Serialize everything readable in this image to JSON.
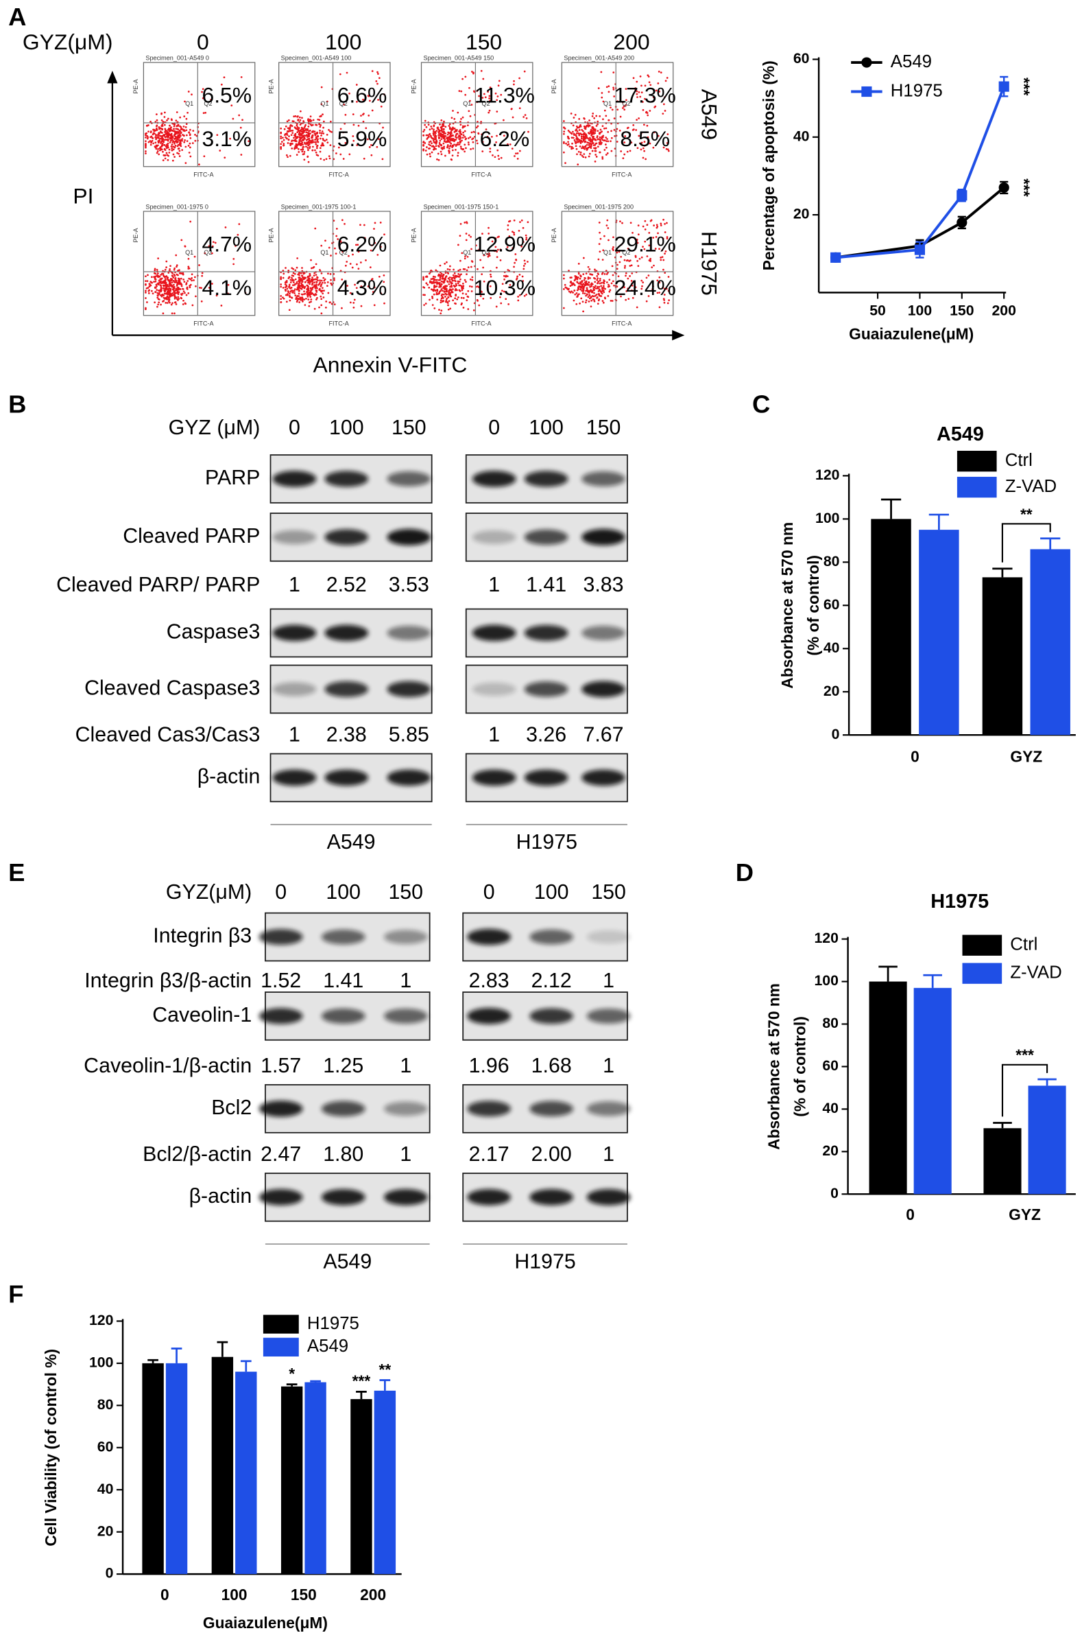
{
  "panel_labels": [
    "A",
    "B",
    "C",
    "D",
    "E",
    "F"
  ],
  "flow": {
    "header": "GYZ(μM)",
    "doses": [
      "0",
      "100",
      "150",
      "200"
    ],
    "rows": [
      {
        "name": "A549",
        "specimens": [
          "Specimen_001-A549 0",
          "Specimen_001-A549 100",
          "Specimen_001-A549 150",
          "Specimen_001-A549 200"
        ],
        "upper": [
          "6.5%",
          "6.6%",
          "11.3%",
          "17.3%"
        ],
        "lower": [
          "3.1%",
          "5.9%",
          "6.2%",
          "8.5%"
        ]
      },
      {
        "name": "H1975",
        "specimens": [
          "Specimen_001-1975 0",
          "Specimen_001-1975 100-1",
          "Specimen_001-1975 150-1",
          "Specimen_001-1975 200"
        ],
        "upper": [
          "4.7%",
          "6.2%",
          "12.9%",
          "29.1%"
        ],
        "lower": [
          "4.1%",
          "4.3%",
          "10.3%",
          "24.4%"
        ]
      }
    ],
    "x_channel": "FITC-A",
    "y_channel": "PE-A",
    "quadrants": [
      "Q1",
      "Q2"
    ],
    "ylabel": "PI",
    "xlabel": "Annexin V-FITC"
  },
  "blot_b": {
    "header": "GYZ (μM)",
    "doses": [
      "0",
      "100",
      "150"
    ],
    "cells": [
      "A549",
      "H1975"
    ],
    "rows": [
      {
        "label": "PARP"
      },
      {
        "label": "Cleaved PARP"
      },
      {
        "label": "Cleaved PARP/ PARP",
        "ratios": [
          [
            "1",
            "2.52",
            "3.53"
          ],
          [
            "1",
            "1.41",
            "3.83"
          ]
        ]
      },
      {
        "label": "Caspase3"
      },
      {
        "label": "Cleaved Caspase3"
      },
      {
        "label": "Cleaved Cas3/Cas3",
        "ratios": [
          [
            "1",
            "2.38",
            "5.85"
          ],
          [
            "1",
            "3.26",
            "7.67"
          ]
        ]
      },
      {
        "label": "β-actin"
      }
    ]
  },
  "blot_e": {
    "header": "GYZ(μM)",
    "doses": [
      "0",
      "100",
      "150"
    ],
    "cells": [
      "A549",
      "H1975"
    ],
    "rows": [
      {
        "label": "Integrin β3"
      },
      {
        "label": "Integrin β3/β-actin",
        "ratios": [
          [
            "1.52",
            "1.41",
            "1"
          ],
          [
            "2.83",
            "2.12",
            "1"
          ]
        ]
      },
      {
        "label": "Caveolin-1"
      },
      {
        "label": "Caveolin-1/β-actin",
        "ratios": [
          [
            "1.57",
            "1.25",
            "1"
          ],
          [
            "1.96",
            "1.68",
            "1"
          ]
        ]
      },
      {
        "label": "Bcl2"
      },
      {
        "label": "Bcl2/β-actin",
        "ratios": [
          [
            "2.47",
            "1.80",
            "1"
          ],
          [
            "2.17",
            "2.00",
            "1"
          ]
        ]
      },
      {
        "label": "β-actin"
      }
    ]
  },
  "chart_data": [
    {
      "type": "line",
      "x": [
        0,
        100,
        150,
        200
      ],
      "xlim": [
        -20,
        200
      ],
      "xticks": [
        50,
        100,
        150,
        200
      ],
      "ylim": [
        0,
        60
      ],
      "yticks": [
        20,
        40,
        60
      ],
      "xlabel": "Guaiazulene(μM)",
      "ylabel": "Percentage of apoptosis (%)",
      "legend": "upper left",
      "series": [
        {
          "name": "A549",
          "color": "#000000",
          "marker": "circle",
          "values": [
            9,
            12,
            18,
            27
          ],
          "errors": [
            0.5,
            1.5,
            1.5,
            1.5
          ],
          "annotation": "***"
        },
        {
          "name": "H1975",
          "color": "#1f4fe6",
          "marker": "square",
          "values": [
            9,
            11,
            25,
            53
          ],
          "errors": [
            0.5,
            2,
            1.5,
            2.5
          ],
          "annotation": "***"
        }
      ]
    },
    {
      "type": "bar",
      "title": "A549",
      "categories": [
        "0",
        "GYZ"
      ],
      "ylim": [
        0,
        120
      ],
      "yticks": [
        0,
        20,
        40,
        60,
        80,
        100,
        120
      ],
      "ylabel": [
        "Absorbance at 570 nm",
        "(% of control)"
      ],
      "legend": "upper right",
      "series": [
        {
          "name": "Ctrl",
          "color": "#000000",
          "values": [
            100,
            73
          ],
          "errors": [
            9,
            4
          ]
        },
        {
          "name": "Z-VAD",
          "color": "#1f4fe6",
          "values": [
            95,
            86
          ],
          "errors": [
            7,
            5
          ]
        }
      ],
      "annotations": [
        {
          "text": "**",
          "category": 1
        }
      ]
    },
    {
      "type": "bar",
      "title": "H1975",
      "categories": [
        "0",
        "GYZ"
      ],
      "ylim": [
        0,
        120
      ],
      "yticks": [
        0,
        20,
        40,
        60,
        80,
        100,
        120
      ],
      "ylabel": [
        "Absorbance at 570 nm",
        "(% of control)"
      ],
      "legend": "upper right",
      "series": [
        {
          "name": "Ctrl",
          "color": "#000000",
          "values": [
            100,
            31
          ],
          "errors": [
            7,
            2.5
          ]
        },
        {
          "name": "Z-VAD",
          "color": "#1f4fe6",
          "values": [
            97,
            51
          ],
          "errors": [
            6,
            3
          ]
        }
      ],
      "annotations": [
        {
          "text": "***",
          "category": 1
        }
      ]
    },
    {
      "type": "bar",
      "categories": [
        "0",
        "100",
        "150",
        "200"
      ],
      "ylim": [
        0,
        120
      ],
      "yticks": [
        0,
        20,
        40,
        60,
        80,
        100,
        120
      ],
      "xlabel": "Guaiazulene(μM)",
      "ylabel": [
        "Cell Viability (of control %)"
      ],
      "legend": "upper center",
      "series": [
        {
          "name": "H1975",
          "color": "#000000",
          "values": [
            100,
            103,
            89,
            83
          ],
          "errors": [
            1.5,
            7,
            1,
            3.5
          ]
        },
        {
          "name": "A549",
          "color": "#1f4fe6",
          "values": [
            100,
            96,
            91,
            87
          ],
          "errors": [
            7,
            5,
            0.5,
            5
          ]
        }
      ],
      "annotations": [
        {
          "text": "*",
          "category": 2,
          "series": 0
        },
        {
          "text": "***",
          "category": 3,
          "series": 0
        },
        {
          "text": "**",
          "category": 3,
          "series": 1
        }
      ]
    }
  ]
}
